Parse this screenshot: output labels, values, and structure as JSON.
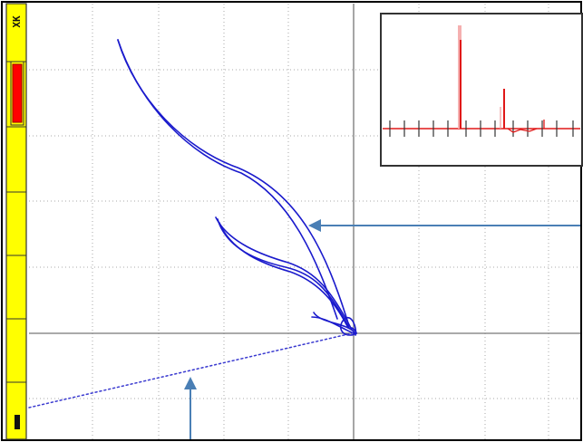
{
  "sidebar": {
    "top_label": "XK",
    "gain_bar_color": "#ff0000",
    "panel_color": "#ffff00",
    "bottom_icon": "cursor-marker-icon"
  },
  "plot": {
    "trace_color": "#1a1acc",
    "grid_color": "#999999",
    "arrow_color": "#4a7fb5"
  },
  "inset": {
    "spectrum_color": "#e01818",
    "baseline_color": "#e01818"
  }
}
